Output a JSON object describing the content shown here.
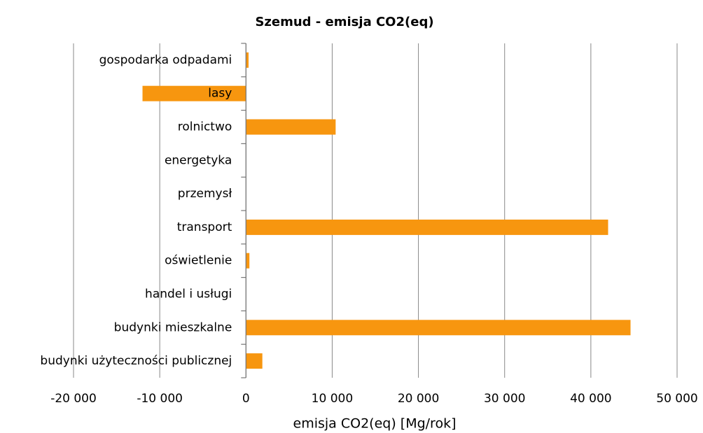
{
  "chart_data": {
    "type": "hbar",
    "title": "Szemud - emisja CO2(eq)",
    "x_label": "emisja CO2(eq) [Mg/rok]",
    "categories": [
      "gospodarka odpadami",
      "lasy",
      "rolnictwo",
      "energetyka",
      "przemysł",
      "transport",
      "oświetlenie",
      "handel i usługi",
      "budynki mieszkalne",
      "budynki użyteczności publicznej"
    ],
    "values": [
      300,
      -12000,
      10400,
      0,
      0,
      42000,
      400,
      0,
      44600,
      1900
    ],
    "color": "#f7960f",
    "xlim": [
      -20000,
      50000
    ],
    "xticks": [
      {
        "value": -20000,
        "label": "-20 000"
      },
      {
        "value": -10000,
        "label": "-10 000"
      },
      0,
      {
        "value": 10000,
        "label": "10 000"
      },
      {
        "value": 20000,
        "label": "20 000"
      },
      {
        "value": 30000,
        "label": "30 000"
      },
      {
        "value": 40000,
        "label": "40 000"
      },
      {
        "value": 50000,
        "label": "50 000"
      }
    ],
    "grid": true
  }
}
